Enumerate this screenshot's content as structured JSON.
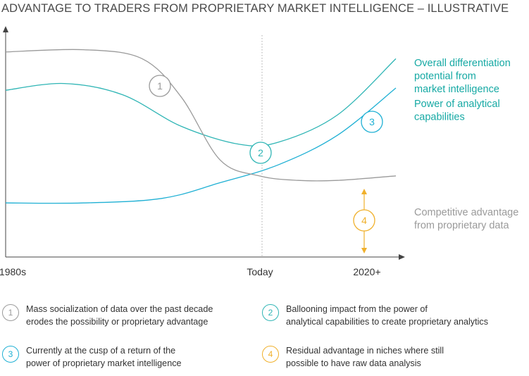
{
  "title": "ADVANTAGE TO TRADERS FROM PROPRIETARY MARKET INTELLIGENCE – ILLUSTRATIVE",
  "colors": {
    "grey": "#9a9a9a",
    "teal": "#2fb5b5",
    "cyan": "#1fb0d4",
    "teal_label": "#16a9a4",
    "orange": "#f0b02b",
    "axis": "#444444"
  },
  "chart_data": {
    "type": "line",
    "x_ticks": [
      "1980s",
      "Today",
      "2020+"
    ],
    "series": [
      {
        "name": "Overall differentiation potential from market intelligence",
        "label_lines": [
          "Overall differentiation",
          "potential from",
          "market intelligence"
        ],
        "color": "#2fb5b5",
        "points": [
          [
            0,
            0.74
          ],
          [
            0.15,
            0.77
          ],
          [
            0.3,
            0.72
          ],
          [
            0.45,
            0.58
          ],
          [
            0.6,
            0.5
          ],
          [
            0.7,
            0.51
          ],
          [
            0.85,
            0.63
          ],
          [
            1.0,
            0.88
          ]
        ]
      },
      {
        "name": "Power of analytical capabilities",
        "label_lines": [
          "Power of analytical",
          "capabilities"
        ],
        "color": "#1fb0d4",
        "points": [
          [
            0,
            0.24
          ],
          [
            0.2,
            0.24
          ],
          [
            0.4,
            0.26
          ],
          [
            0.55,
            0.33
          ],
          [
            0.7,
            0.41
          ],
          [
            0.85,
            0.54
          ],
          [
            1.0,
            0.75
          ]
        ]
      },
      {
        "name": "Competitive advantage from proprietary data",
        "label_lines": [
          "Competitive advantage",
          "from proprietary data"
        ],
        "color": "#9a9a9a",
        "points": [
          [
            0,
            0.91
          ],
          [
            0.2,
            0.92
          ],
          [
            0.35,
            0.88
          ],
          [
            0.45,
            0.71
          ],
          [
            0.55,
            0.43
          ],
          [
            0.65,
            0.36
          ],
          [
            0.75,
            0.34
          ],
          [
            0.85,
            0.34
          ],
          [
            1.0,
            0.36
          ]
        ]
      }
    ],
    "markers": [
      {
        "num": "1",
        "color": "#9a9a9a"
      },
      {
        "num": "2",
        "color": "#2fb5b5"
      },
      {
        "num": "3",
        "color": "#1fb0d4"
      },
      {
        "num": "4",
        "color": "#f0b02b"
      }
    ]
  },
  "legend": [
    {
      "num": "1",
      "color": "#9a9a9a",
      "lines": [
        "Mass socialization of data over the past decade",
        "erodes the possibility or proprietary advantage"
      ]
    },
    {
      "num": "2",
      "color": "#2fb5b5",
      "lines": [
        "Ballooning impact from the power of",
        "analytical capabilities to create proprietary analytics"
      ]
    },
    {
      "num": "3",
      "color": "#1fb0d4",
      "lines": [
        "Currently at the  cusp of a return of the",
        "power of proprietary market intelligence"
      ]
    },
    {
      "num": "4",
      "color": "#f0b02b",
      "lines": [
        "Residual advantage in niches where still",
        "possible to have raw data analysis"
      ]
    }
  ]
}
